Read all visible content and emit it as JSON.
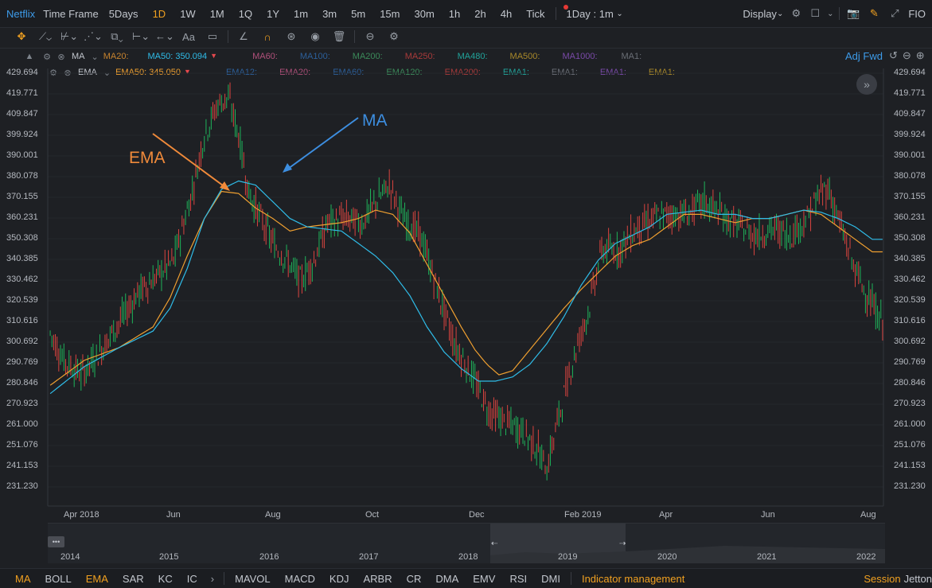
{
  "topbar": {
    "brand": "Netflix",
    "time_frame_label": "Time Frame",
    "timeframes": [
      "5Days",
      "1D",
      "1W",
      "1M",
      "1Q",
      "1Y",
      "1m",
      "3m",
      "5m",
      "15m",
      "30m",
      "1h",
      "2h",
      "4h",
      "Tick"
    ],
    "active_timeframe": "1D",
    "interval_select": "1Day : 1m",
    "display_label": "Display",
    "fio_label": "FIO"
  },
  "indicators": {
    "ma_row": {
      "name": "MA",
      "entries": [
        {
          "label": "MA20:",
          "color": "#c7832e"
        },
        {
          "label": "MA50: 350.094",
          "color": "#2fbce8",
          "active": true
        },
        {
          "label": "MA60:",
          "color": "#b0507a"
        },
        {
          "label": "MA100:",
          "color": "#2c5f9a"
        },
        {
          "label": "MA200:",
          "color": "#3b8a5a"
        },
        {
          "label": "MA250:",
          "color": "#a83a3a"
        },
        {
          "label": "MA480:",
          "color": "#21a39a"
        },
        {
          "label": "MA500:",
          "color": "#a8882a"
        },
        {
          "label": "MA1000:",
          "color": "#7a4aa8"
        },
        {
          "label": "MA1:",
          "color": "#6a6e76"
        }
      ]
    },
    "ema_row": {
      "name": "EMA",
      "entries": [
        {
          "label": "EMA50: 345.050",
          "color": "#f0a030",
          "active": true
        },
        {
          "label": "EMA12:",
          "color": "#2c5f9a"
        },
        {
          "label": "EMA20:",
          "color": "#b0507a"
        },
        {
          "label": "EMA60:",
          "color": "#2c5f9a"
        },
        {
          "label": "EMA120:",
          "color": "#3b8a5a"
        },
        {
          "label": "EMA200:",
          "color": "#a83a3a"
        },
        {
          "label": "EMA1:",
          "color": "#21a39a"
        },
        {
          "label": "EMA1:",
          "color": "#6a6e76"
        },
        {
          "label": "EMA1:",
          "color": "#7a4aa8"
        },
        {
          "label": "EMA1:",
          "color": "#a8882a"
        }
      ]
    },
    "adj_label": "Adj Fwd"
  },
  "annotations": {
    "ema": "EMA",
    "ma": "MA"
  },
  "chart_data": {
    "type": "candlestick",
    "y_ticks": [
      "429.694",
      "419.771",
      "409.847",
      "399.924",
      "390.001",
      "380.078",
      "370.155",
      "360.231",
      "350.308",
      "340.385",
      "330.462",
      "320.539",
      "310.616",
      "300.692",
      "290.769",
      "280.846",
      "270.923",
      "261.000",
      "251.076",
      "241.153",
      "231.230"
    ],
    "x_ticks": [
      "Apr 2018",
      "Jun",
      "Aug",
      "Oct",
      "Dec",
      "Feb 2019",
      "Apr",
      "Jun",
      "Aug"
    ],
    "ylim": [
      231.23,
      429.694
    ],
    "price_path": [
      [
        0,
        305
      ],
      [
        8,
        292
      ],
      [
        18,
        285
      ],
      [
        28,
        295
      ],
      [
        40,
        310
      ],
      [
        52,
        325
      ],
      [
        62,
        332
      ],
      [
        72,
        340
      ],
      [
        82,
        370
      ],
      [
        90,
        400
      ],
      [
        98,
        415
      ],
      [
        104,
        418
      ],
      [
        110,
        400
      ],
      [
        116,
        372
      ],
      [
        122,
        362
      ],
      [
        130,
        348
      ],
      [
        138,
        340
      ],
      [
        146,
        330
      ],
      [
        154,
        340
      ],
      [
        162,
        358
      ],
      [
        172,
        360
      ],
      [
        182,
        358
      ],
      [
        192,
        370
      ],
      [
        198,
        376
      ],
      [
        206,
        360
      ],
      [
        216,
        352
      ],
      [
        226,
        326
      ],
      [
        236,
        300
      ],
      [
        246,
        285
      ],
      [
        256,
        268
      ],
      [
        266,
        262
      ],
      [
        276,
        258
      ],
      [
        284,
        250
      ],
      [
        290,
        240
      ],
      [
        296,
        262
      ],
      [
        302,
        282
      ],
      [
        308,
        300
      ],
      [
        314,
        315
      ],
      [
        322,
        345
      ],
      [
        332,
        345
      ],
      [
        342,
        355
      ],
      [
        352,
        360
      ],
      [
        362,
        362
      ],
      [
        372,
        362
      ],
      [
        382,
        368
      ],
      [
        392,
        362
      ],
      [
        402,
        356
      ],
      [
        412,
        352
      ],
      [
        422,
        355
      ],
      [
        432,
        352
      ],
      [
        442,
        360
      ],
      [
        448,
        370
      ],
      [
        454,
        375
      ],
      [
        460,
        360
      ],
      [
        466,
        345
      ],
      [
        470,
        335
      ],
      [
        476,
        325
      ],
      [
        482,
        315
      ],
      [
        486,
        310
      ]
    ],
    "ema50_path": [
      [
        0,
        280
      ],
      [
        20,
        292
      ],
      [
        40,
        298
      ],
      [
        60,
        308
      ],
      [
        70,
        322
      ],
      [
        80,
        342
      ],
      [
        90,
        360
      ],
      [
        100,
        373
      ],
      [
        110,
        372
      ],
      [
        120,
        365
      ],
      [
        130,
        360
      ],
      [
        140,
        354
      ],
      [
        150,
        356
      ],
      [
        160,
        357
      ],
      [
        170,
        358
      ],
      [
        180,
        360
      ],
      [
        190,
        364
      ],
      [
        200,
        362
      ],
      [
        210,
        353
      ],
      [
        220,
        338
      ],
      [
        230,
        323
      ],
      [
        240,
        308
      ],
      [
        248,
        297
      ],
      [
        255,
        290
      ],
      [
        262,
        285
      ],
      [
        270,
        287
      ],
      [
        280,
        297
      ],
      [
        290,
        307
      ],
      [
        300,
        317
      ],
      [
        310,
        326
      ],
      [
        320,
        334
      ],
      [
        330,
        342
      ],
      [
        340,
        347
      ],
      [
        350,
        350
      ],
      [
        360,
        356
      ],
      [
        370,
        362
      ],
      [
        380,
        362
      ],
      [
        390,
        360
      ],
      [
        400,
        358
      ],
      [
        410,
        360
      ],
      [
        420,
        360
      ],
      [
        430,
        362
      ],
      [
        440,
        364
      ],
      [
        450,
        362
      ],
      [
        460,
        356
      ],
      [
        470,
        350
      ],
      [
        480,
        344
      ]
    ],
    "ma50_path": [
      [
        0,
        276
      ],
      [
        20,
        289
      ],
      [
        40,
        298
      ],
      [
        60,
        306
      ],
      [
        70,
        317
      ],
      [
        80,
        336
      ],
      [
        90,
        360
      ],
      [
        100,
        374
      ],
      [
        110,
        378
      ],
      [
        120,
        376
      ],
      [
        130,
        368
      ],
      [
        140,
        360
      ],
      [
        150,
        356
      ],
      [
        160,
        355
      ],
      [
        170,
        354
      ],
      [
        180,
        348
      ],
      [
        190,
        342
      ],
      [
        200,
        334
      ],
      [
        210,
        323
      ],
      [
        220,
        308
      ],
      [
        230,
        296
      ],
      [
        240,
        288
      ],
      [
        250,
        282
      ],
      [
        260,
        282
      ],
      [
        270,
        284
      ],
      [
        280,
        290
      ],
      [
        290,
        300
      ],
      [
        300,
        313
      ],
      [
        310,
        328
      ],
      [
        320,
        340
      ],
      [
        330,
        348
      ],
      [
        340,
        352
      ],
      [
        350,
        356
      ],
      [
        360,
        362
      ],
      [
        370,
        363
      ],
      [
        380,
        364
      ],
      [
        390,
        362
      ],
      [
        400,
        362
      ],
      [
        410,
        360
      ],
      [
        420,
        360
      ],
      [
        430,
        362
      ],
      [
        440,
        364
      ],
      [
        450,
        363
      ],
      [
        460,
        360
      ],
      [
        470,
        356
      ],
      [
        480,
        350
      ]
    ]
  },
  "navigator": {
    "years": [
      "2014",
      "2015",
      "2016",
      "2017",
      "2018",
      "2019",
      "2020",
      "2021",
      "2022"
    ],
    "menu": "•••"
  },
  "bottombar": {
    "items": [
      "MA",
      "BOLL",
      "EMA",
      "SAR",
      "KC",
      "IC"
    ],
    "active": [
      "MA",
      "EMA"
    ],
    "sub_items": [
      "MAVOL",
      "MACD",
      "KDJ",
      "ARBR",
      "CR",
      "DMA",
      "EMV",
      "RSI",
      "DMI"
    ],
    "indicator_management": "Indicator management",
    "session": "Session",
    "jetton": "Jetton"
  },
  "colors": {
    "up": "#1fb35a",
    "down": "#d9443f",
    "ema": "#f0a030",
    "ma": "#2fbce8",
    "accent": "#f0a020",
    "brand": "#3d9be9"
  }
}
